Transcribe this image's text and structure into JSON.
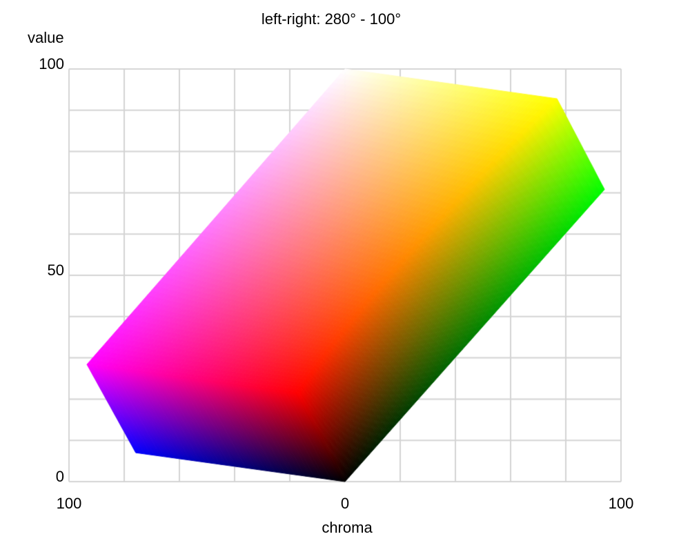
{
  "chart_data": {
    "type": "heatmap",
    "subtype": "color-gamut-slice",
    "title": "left-right: 280° - 100°",
    "xlabel": "chroma",
    "ylabel": "value",
    "hue_left_deg": 280,
    "hue_right_deg": 100,
    "xlim": [
      -100,
      100
    ],
    "ylim": [
      0,
      100
    ],
    "x_ticks": [
      {
        "value": -100,
        "label": "100"
      },
      {
        "value": 0,
        "label": "0"
      },
      {
        "value": 100,
        "label": "100"
      }
    ],
    "y_ticks": [
      {
        "value": 0,
        "label": "0"
      },
      {
        "value": 50,
        "label": "50"
      },
      {
        "value": 100,
        "label": "100"
      }
    ],
    "grid": {
      "show": true,
      "x_step": 20,
      "y_step": 10,
      "color": "#d4d4d4",
      "line_width": 2
    },
    "background": "#ffffff",
    "text_color": "#000000",
    "gamut_vertices": {
      "white": {
        "chroma": 0,
        "value": 100,
        "color": "#ffffff"
      },
      "yellow": {
        "chroma": 76.8,
        "value": 92.8,
        "color": "#ffff00"
      },
      "green": {
        "chroma": 94.0,
        "value": 70.8,
        "color": "#00ff00"
      },
      "black": {
        "chroma": 0,
        "value": 0,
        "color": "#000000"
      },
      "blue": {
        "chroma": -75.8,
        "value": 7.0,
        "color": "#0000ff"
      },
      "magenta": {
        "chroma": -93.5,
        "value": 28.4,
        "color": "#ff00ff"
      },
      "red": {
        "chroma": -16.8,
        "value": 21.4,
        "color": "#ff0000"
      }
    },
    "faces": [
      {
        "name": "red-face",
        "p00": "red",
        "p10": "yellow",
        "p11": "white",
        "p01": "magenta"
      },
      {
        "name": "no-blue-face",
        "p00": "black",
        "p10": "green",
        "p11": "yellow",
        "p01": "red"
      },
      {
        "name": "no-green-face",
        "p00": "black",
        "p10": "blue",
        "p11": "magenta",
        "p01": "red"
      }
    ],
    "curved_edges": [
      {
        "a": "red",
        "b": "yellow",
        "control": {
          "chroma": 7.5,
          "value": 46.5
        }
      }
    ]
  }
}
